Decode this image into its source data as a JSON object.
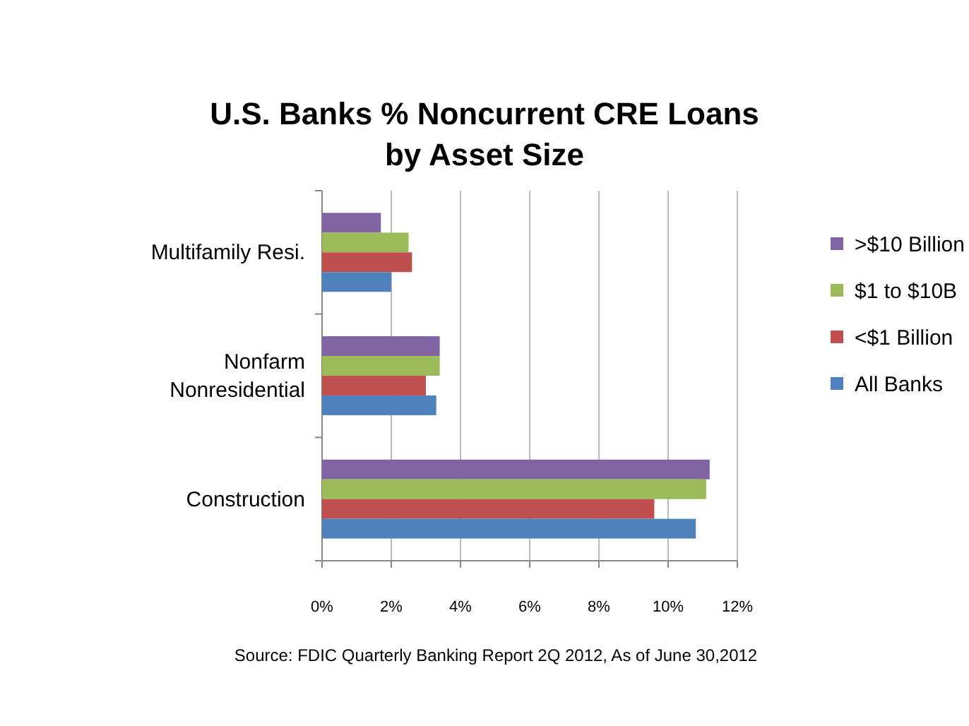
{
  "chart_data": {
    "type": "bar",
    "orientation": "horizontal",
    "title": "U.S. Banks % Noncurrent CRE Loans by Asset Size",
    "categories": [
      "Multifamily Resi.",
      "Nonfarm Nonresidential",
      "Construction"
    ],
    "series": [
      {
        "name": ">$10 Billion",
        "color": "#8064a2",
        "values": [
          1.7,
          3.4,
          11.2
        ]
      },
      {
        "name": "$1 to $10B",
        "color": "#9bbb59",
        "values": [
          2.5,
          3.4,
          11.1
        ]
      },
      {
        "name": "<$1 Billion",
        "color": "#c0504d",
        "values": [
          2.6,
          3.0,
          9.6
        ]
      },
      {
        "name": "All Banks",
        "color": "#4f81bd",
        "values": [
          2.0,
          3.3,
          10.8
        ]
      }
    ],
    "xlim": [
      0,
      12
    ],
    "xticks": [
      {
        "value": 0,
        "label": "0%"
      },
      {
        "value": 2,
        "label": "2%"
      },
      {
        "value": 4,
        "label": "4%"
      },
      {
        "value": 6,
        "label": "6%"
      },
      {
        "value": 8,
        "label": "8%"
      },
      {
        "value": 10,
        "label": "10%"
      },
      {
        "value": 12,
        "label": "12%"
      }
    ],
    "grid": "x",
    "legend": "right",
    "annotations": [
      "Source: FDIC Quarterly Banking Report 2Q 2012, As of June 30,2012"
    ]
  }
}
